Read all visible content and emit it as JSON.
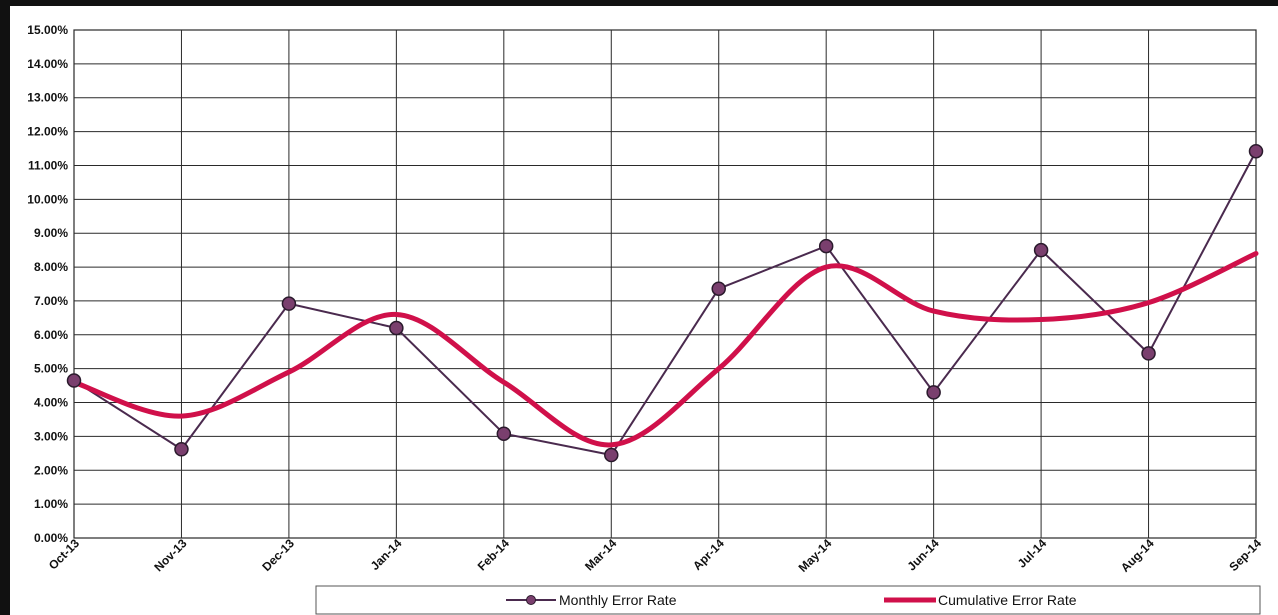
{
  "chart_data": {
    "type": "line",
    "categories": [
      "Oct-13",
      "Nov-13",
      "Dec-13",
      "Jan-14",
      "Feb-14",
      "Mar-14",
      "Apr-14",
      "May-14",
      "Jun-14",
      "Jul-14",
      "Aug-14",
      "Sep-14"
    ],
    "series": [
      {
        "name": "Monthly Error Rate",
        "values": [
          4.65,
          2.62,
          6.92,
          6.2,
          3.08,
          2.45,
          7.36,
          8.62,
          4.3,
          8.5,
          5.45,
          11.42
        ],
        "color": "#4a2a4e",
        "marker": "circle"
      },
      {
        "name": "Cumulative Error Rate",
        "values": [
          4.6,
          3.6,
          4.9,
          6.6,
          4.6,
          2.75,
          5.0,
          8.0,
          6.7,
          6.45,
          6.95,
          8.4
        ],
        "color": "#d0104a",
        "marker": "none",
        "smooth": true
      }
    ],
    "ylim": [
      0,
      15
    ],
    "ytick_step": 1,
    "ytick_labels": [
      "0.00%",
      "1.00%",
      "2.00%",
      "3.00%",
      "4.00%",
      "5.00%",
      "6.00%",
      "7.00%",
      "8.00%",
      "9.00%",
      "10.00%",
      "11.00%",
      "12.00%",
      "13.00%",
      "14.00%",
      "15.00%"
    ],
    "grid": true,
    "legend_position": "bottom"
  }
}
